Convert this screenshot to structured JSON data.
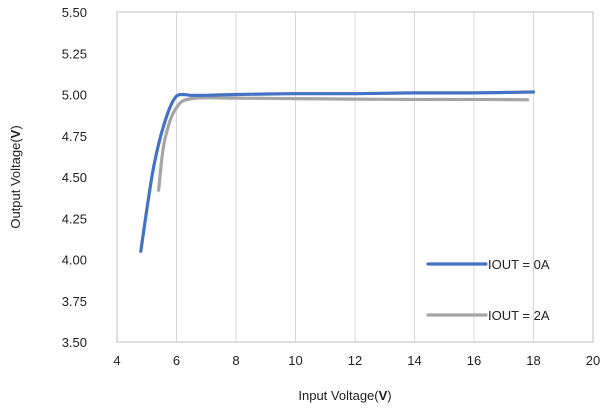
{
  "chart_data": {
    "type": "line",
    "xlabel_prefix": "Input Voltage(",
    "xlabel_unit": "V",
    "xlabel_suffix": ")",
    "ylabel_prefix": "Output Voltage(",
    "ylabel_unit": "V",
    "ylabel_suffix": ")",
    "xlim": [
      4,
      20
    ],
    "ylim": [
      3.5,
      5.5
    ],
    "x_ticks": [
      4,
      6,
      8,
      10,
      12,
      14,
      16,
      18,
      20
    ],
    "x_tick_labels": [
      "4",
      "6",
      "8",
      "10",
      "12",
      "14",
      "16",
      "18",
      "20"
    ],
    "y_ticks": [
      3.5,
      3.75,
      4.0,
      4.25,
      4.5,
      4.75,
      5.0,
      5.25,
      5.5
    ],
    "y_tick_labels": [
      "3.50",
      "3.75",
      "4.00",
      "4.25",
      "4.50",
      "4.75",
      "5.00",
      "5.25",
      "5.50"
    ],
    "grid": "vertical",
    "legend_position": "bottom-right",
    "series": [
      {
        "name": "IOUT = 0A",
        "color": "#4472C4",
        "points": [
          [
            4.8,
            4.05
          ],
          [
            5.0,
            4.3
          ],
          [
            5.2,
            4.53
          ],
          [
            5.4,
            4.7
          ],
          [
            5.6,
            4.83
          ],
          [
            5.8,
            4.93
          ],
          [
            6.0,
            4.99
          ],
          [
            6.2,
            5.0
          ],
          [
            6.5,
            4.995
          ],
          [
            7.0,
            4.995
          ],
          [
            8.0,
            5.0
          ],
          [
            10.0,
            5.005
          ],
          [
            12.0,
            5.005
          ],
          [
            14.0,
            5.01
          ],
          [
            16.0,
            5.01
          ],
          [
            18.0,
            5.015
          ]
        ]
      },
      {
        "name": "IOUT = 2A",
        "color": "#A5A5A5",
        "points": [
          [
            5.4,
            4.42
          ],
          [
            5.5,
            4.6
          ],
          [
            5.6,
            4.72
          ],
          [
            5.8,
            4.85
          ],
          [
            6.0,
            4.92
          ],
          [
            6.2,
            4.96
          ],
          [
            6.5,
            4.975
          ],
          [
            7.0,
            4.98
          ],
          [
            8.0,
            4.978
          ],
          [
            10.0,
            4.975
          ],
          [
            12.0,
            4.972
          ],
          [
            14.0,
            4.97
          ],
          [
            16.0,
            4.97
          ],
          [
            17.8,
            4.968
          ]
        ]
      }
    ]
  }
}
